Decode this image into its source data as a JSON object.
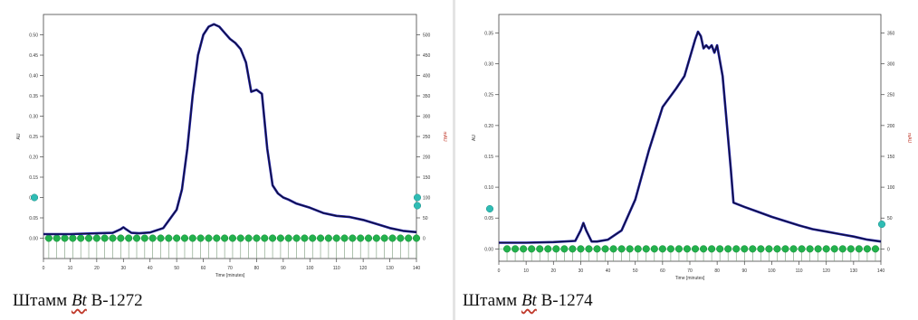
{
  "chart_data": [
    {
      "type": "line",
      "caption": {
        "prefix": "Штамм",
        "strain": "Bt",
        "code": "B-1272"
      },
      "xlabel": "Time [minutes]",
      "ylabel": "AU",
      "y2label": "mAU",
      "xlim": [
        0,
        140
      ],
      "ylim": [
        -0.05,
        0.55
      ],
      "y2lim": [
        -50,
        550
      ],
      "x_ticks": [
        0,
        10,
        20,
        30,
        40,
        50,
        60,
        70,
        80,
        90,
        100,
        110,
        120,
        130,
        140
      ],
      "y_ticks": [
        0.0,
        0.05,
        0.1,
        0.15,
        0.2,
        0.25,
        0.3,
        0.35,
        0.4,
        0.45,
        0.5
      ],
      "y2_ticks": [
        0,
        50,
        100,
        150,
        200,
        250,
        300,
        350,
        400,
        450,
        500
      ],
      "series": [
        {
          "color": "#1a1a9e",
          "x": [
            0,
            10,
            20,
            26,
            29,
            30,
            31,
            33,
            36,
            40,
            45,
            50,
            52,
            54,
            56,
            58,
            60,
            62,
            64,
            66,
            68,
            70,
            72,
            74,
            76,
            78,
            80,
            82,
            84,
            86,
            88,
            90,
            92,
            95,
            100,
            105,
            110,
            115,
            120,
            125,
            130,
            135,
            140
          ],
          "y": [
            0.01,
            0.01,
            0.012,
            0.013,
            0.022,
            0.027,
            0.022,
            0.013,
            0.012,
            0.014,
            0.025,
            0.07,
            0.12,
            0.22,
            0.35,
            0.45,
            0.5,
            0.52,
            0.526,
            0.52,
            0.505,
            0.49,
            0.48,
            0.465,
            0.432,
            0.36,
            0.365,
            0.355,
            0.22,
            0.13,
            0.11,
            0.1,
            0.095,
            0.085,
            0.075,
            0.062,
            0.055,
            0.052,
            0.045,
            0.035,
            0.025,
            0.018,
            0.015
          ]
        }
      ],
      "fraction_markers": {
        "color": "#22b14c",
        "level": 0.0,
        "x": [
          2,
          5,
          8,
          11,
          14,
          17,
          20,
          23,
          26,
          29,
          32,
          35,
          38,
          41,
          44,
          47,
          50,
          53,
          56,
          59,
          62,
          65,
          68,
          71,
          74,
          77,
          80,
          83,
          86,
          89,
          92,
          95,
          98,
          101,
          104,
          107,
          110,
          113,
          116,
          119,
          122,
          125,
          128,
          131,
          134,
          137,
          140
        ]
      },
      "axis_markers": {
        "color": "#2fbcb4",
        "left_y": [
          0.1
        ],
        "right_y2": [
          100,
          80
        ]
      }
    },
    {
      "type": "line",
      "caption": {
        "prefix": "Штамм",
        "strain": "Bt",
        "code": "B-1274"
      },
      "xlabel": "Time [minutes]",
      "ylabel": "AU",
      "y2label": "mAU",
      "xlim": [
        0,
        140
      ],
      "ylim": [
        -0.02,
        0.38
      ],
      "y2lim": [
        -20,
        380
      ],
      "x_ticks": [
        0,
        10,
        20,
        30,
        40,
        50,
        60,
        70,
        80,
        90,
        100,
        110,
        120,
        130,
        140
      ],
      "y_ticks": [
        0.0,
        0.05,
        0.1,
        0.15,
        0.2,
        0.25,
        0.3,
        0.35
      ],
      "y2_ticks": [
        0,
        50,
        100,
        150,
        200,
        250,
        300,
        350
      ],
      "series": [
        {
          "color": "#1a1a9e",
          "x": [
            0,
            10,
            20,
            28,
            30,
            31,
            32,
            34,
            36,
            40,
            45,
            50,
            55,
            60,
            65,
            68,
            70,
            72,
            73,
            74,
            75,
            76,
            77,
            78,
            79,
            80,
            82,
            85,
            86,
            90,
            95,
            100,
            105,
            110,
            115,
            120,
            125,
            130,
            135,
            140
          ],
          "y": [
            0.01,
            0.01,
            0.011,
            0.013,
            0.03,
            0.042,
            0.03,
            0.012,
            0.012,
            0.015,
            0.03,
            0.08,
            0.16,
            0.23,
            0.26,
            0.28,
            0.31,
            0.34,
            0.352,
            0.345,
            0.325,
            0.33,
            0.325,
            0.33,
            0.318,
            0.33,
            0.28,
            0.13,
            0.075,
            0.068,
            0.06,
            0.052,
            0.045,
            0.038,
            0.032,
            0.028,
            0.024,
            0.02,
            0.015,
            0.012
          ]
        }
      ],
      "fraction_markers": {
        "color": "#22b14c",
        "level": 0.0,
        "x": [
          3,
          6,
          9,
          12,
          15,
          18,
          21,
          24,
          27,
          30,
          33,
          36,
          39,
          42,
          45,
          48,
          51,
          54,
          57,
          60,
          63,
          66,
          69,
          72,
          75,
          78,
          81,
          84,
          87,
          90,
          93,
          96,
          99,
          102,
          105,
          108,
          111,
          114,
          117,
          120,
          123,
          126,
          129,
          132,
          135,
          138
        ]
      },
      "axis_markers": {
        "color": "#2fbcb4",
        "left_y": [
          0.065
        ],
        "right_y2": [
          40
        ]
      }
    }
  ]
}
